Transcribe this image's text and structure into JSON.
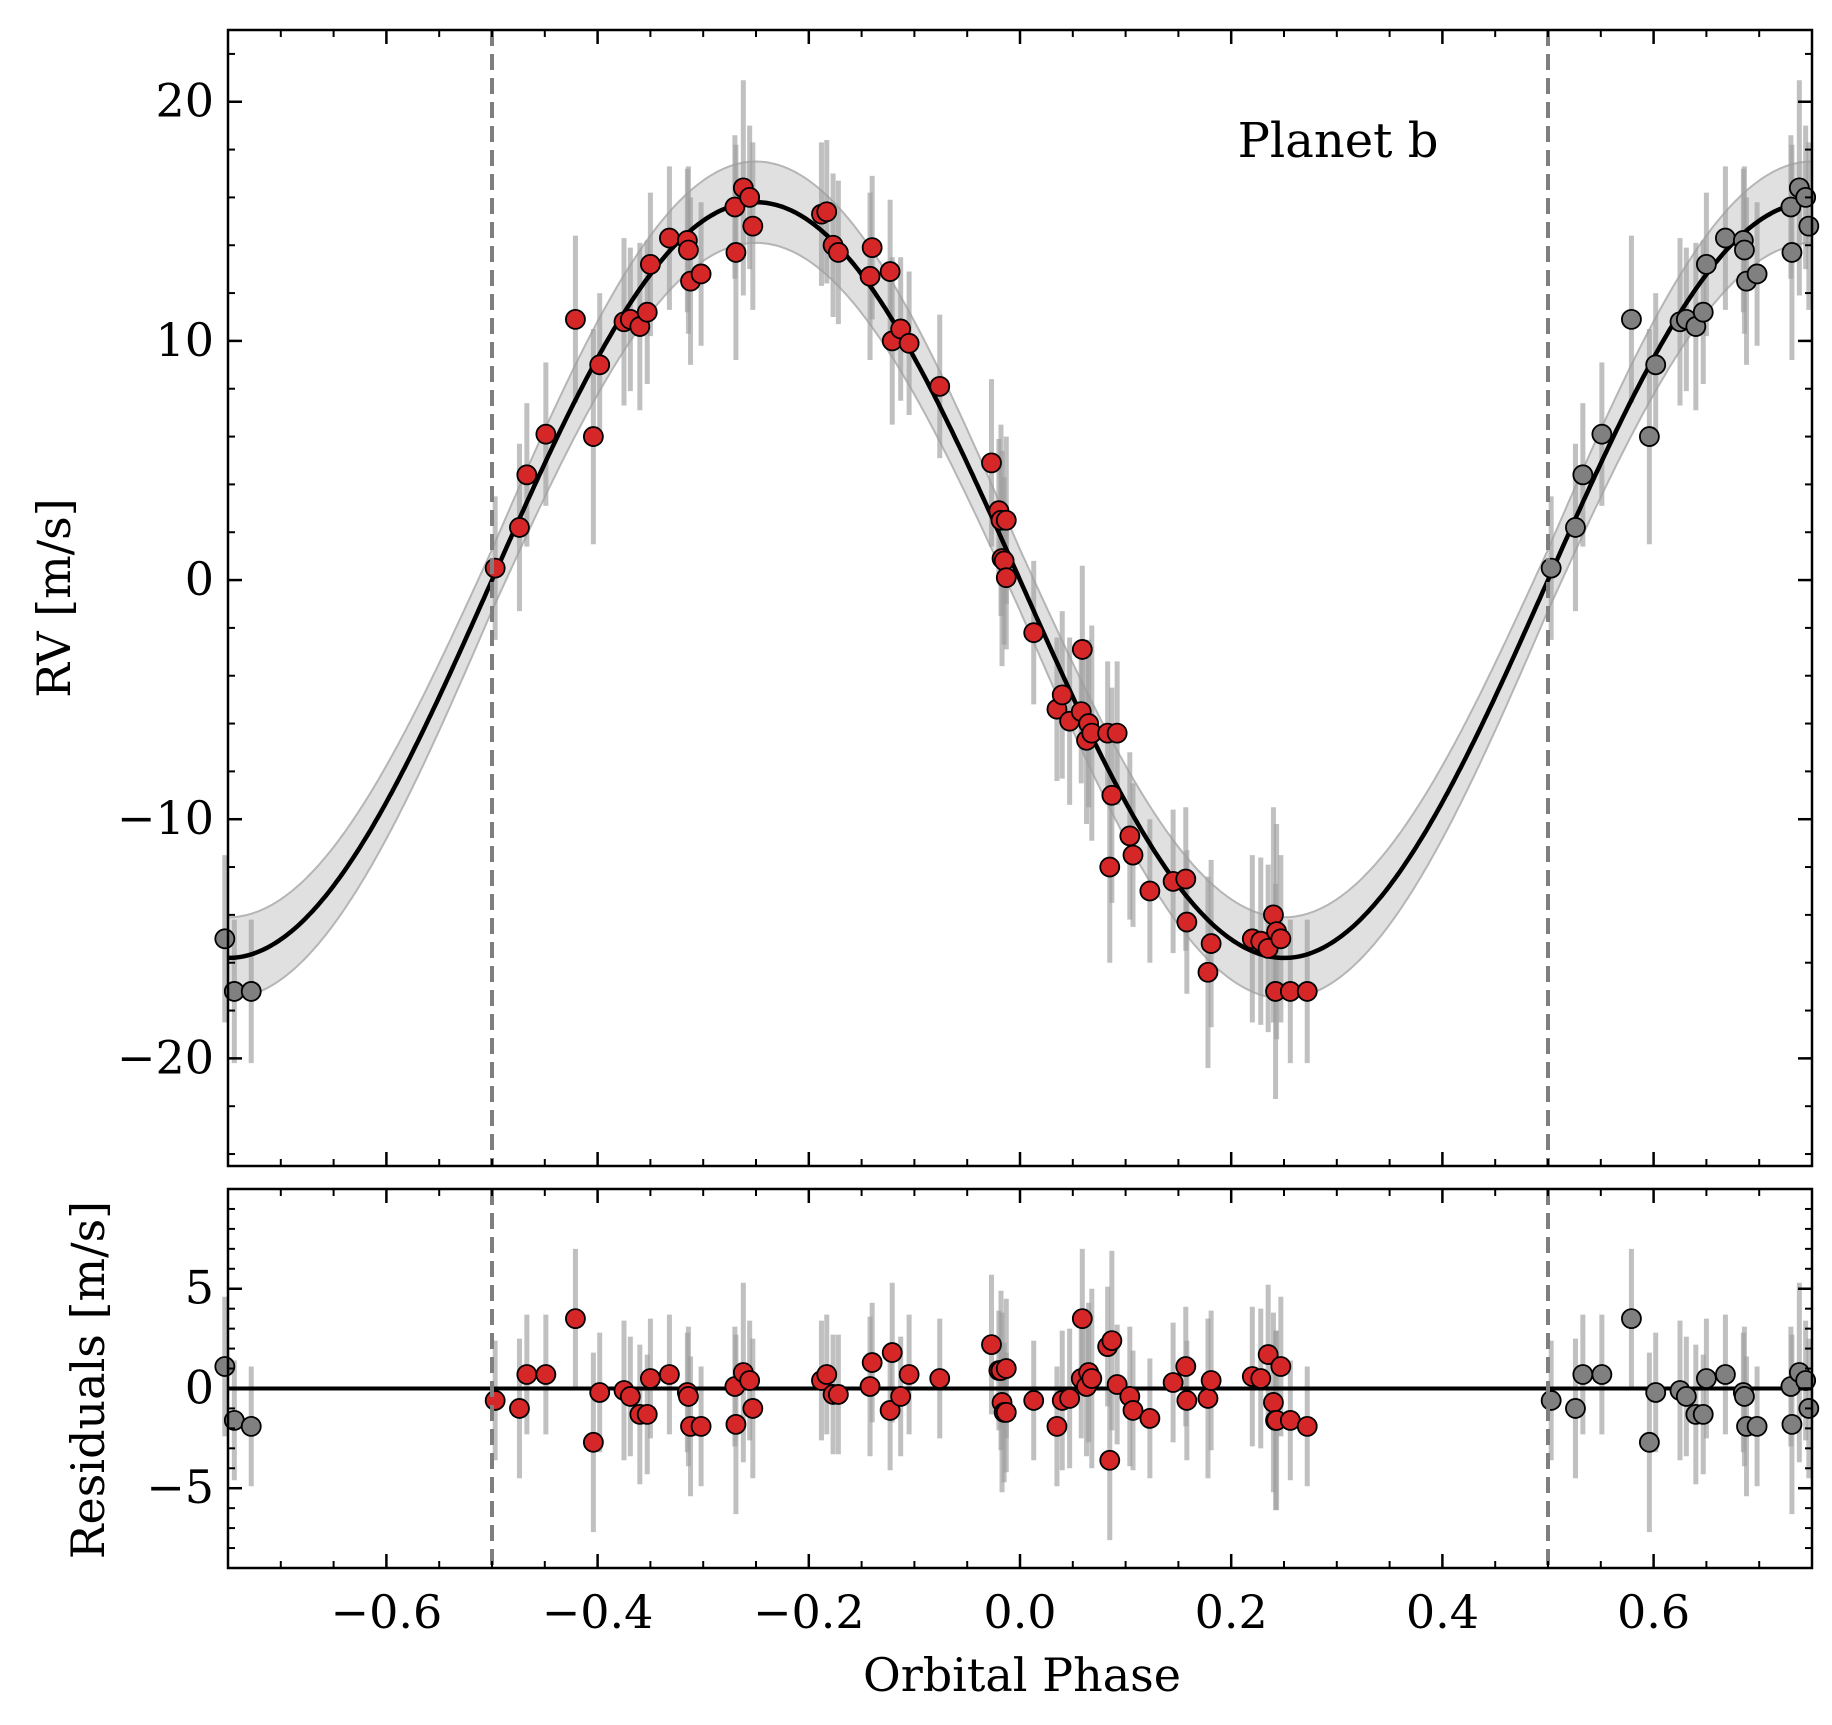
{
  "chart_data": {
    "type": "scatter",
    "xlabel": "Orbital Phase",
    "xlim": [
      -0.75,
      0.75
    ],
    "x_ticks": [
      -0.6,
      -0.4,
      -0.2,
      0.0,
      0.2,
      0.4,
      0.6
    ],
    "x_tick_labels": [
      "−0.6",
      "−0.4",
      "−0.2",
      "0.0",
      "0.2",
      "0.4",
      "0.6"
    ],
    "phase_boundaries": [
      -0.5,
      0.5
    ],
    "colors": {
      "primary_points": "#d62728",
      "wrapped_points": "#808080",
      "error_bars": "#9e9e9e",
      "model_band": "#d3d3d3",
      "model": "#000000",
      "boundary_lines": "#7f7f7f"
    },
    "rv_panel": {
      "ylabel": "RV [m/s]",
      "ylim": [
        -24.5,
        23
      ],
      "y_ticks": [
        -20,
        -10,
        0,
        10,
        20
      ],
      "y_tick_labels": [
        "−20",
        "−10",
        "0",
        "10",
        "20"
      ],
      "annotation": "Planet b",
      "model": {
        "semi_amplitude": 15.8,
        "phase_offset": 0.0,
        "band_halfwidth": 1.7
      }
    },
    "residual_panel": {
      "ylabel": "Residuals [m/s]",
      "ylim": [
        -9,
        10
      ],
      "y_ticks": [
        -5,
        0,
        5
      ],
      "y_tick_labels": [
        "−5",
        "0",
        "5"
      ],
      "zero_line": 0
    },
    "series": [
      {
        "phase": [
          -0.497,
          -0.474,
          -0.467,
          -0.449,
          -0.421,
          -0.404,
          -0.398,
          -0.375,
          -0.369,
          -0.36,
          -0.353,
          -0.35,
          -0.332,
          -0.315,
          -0.314,
          -0.312,
          -0.302,
          -0.27,
          -0.269,
          -0.262,
          -0.256,
          -0.253,
          -0.188,
          -0.183,
          -0.177,
          -0.172,
          -0.142,
          -0.14,
          -0.123,
          -0.121,
          -0.113,
          -0.105,
          -0.076,
          -0.027,
          -0.02,
          -0.018,
          -0.017,
          -0.015,
          -0.013,
          -0.013,
          0.013,
          0.035,
          0.04,
          0.047,
          0.058,
          0.059,
          0.063,
          0.065,
          0.068,
          0.083,
          0.085,
          0.087,
          0.092,
          0.104,
          0.107,
          0.123,
          0.145,
          0.157,
          0.158,
          0.178,
          0.181,
          0.22,
          0.228,
          0.235,
          0.24,
          0.242,
          0.243,
          0.247,
          0.256,
          0.272
        ],
        "rv": [
          0.5,
          2.2,
          4.4,
          6.1,
          10.9,
          6.0,
          9.0,
          10.8,
          10.9,
          10.6,
          11.2,
          13.2,
          14.3,
          14.2,
          13.8,
          12.5,
          12.8,
          15.6,
          13.7,
          16.4,
          16.0,
          14.8,
          15.3,
          15.4,
          14.0,
          13.7,
          12.7,
          13.9,
          12.9,
          10.0,
          10.5,
          9.9,
          8.1,
          4.9,
          2.9,
          2.5,
          0.9,
          0.8,
          2.5,
          0.1,
          -2.2,
          -5.4,
          -4.8,
          -5.9,
          -5.5,
          -2.9,
          -6.7,
          -6.0,
          -6.4,
          -6.4,
          -12.0,
          -9.0,
          -6.4,
          -10.7,
          -11.5,
          -13.0,
          -12.6,
          -12.5,
          -14.3,
          -16.4,
          -15.2,
          -15.0,
          -15.1,
          -15.4,
          -14.0,
          -17.2,
          -14.7,
          -15.0,
          -17.2,
          -17.2
        ],
        "residual": [
          -0.6,
          -1.0,
          0.7,
          0.7,
          3.5,
          -2.7,
          -0.2,
          -0.1,
          -0.4,
          -1.3,
          -1.3,
          0.5,
          0.7,
          -0.2,
          -0.4,
          -1.9,
          -1.9,
          0.1,
          -1.8,
          0.8,
          0.4,
          -1.0,
          0.4,
          0.7,
          -0.3,
          -0.3,
          0.1,
          1.3,
          -1.1,
          1.8,
          -0.4,
          0.7,
          0.5,
          2.2,
          0.9,
          0.9,
          -0.7,
          -1.2,
          1.0,
          -1.2,
          -0.6,
          -1.9,
          -0.6,
          -0.5,
          0.5,
          3.5,
          0.1,
          0.8,
          0.5,
          2.1,
          -3.6,
          2.4,
          0.2,
          -0.4,
          -1.1,
          -1.5,
          0.3,
          1.1,
          -0.6,
          -0.5,
          0.4,
          0.6,
          0.5,
          1.7,
          -0.7,
          -1.6,
          -1.6,
          1.1,
          -1.6,
          -1.9
        ],
        "error": [
          3.0,
          3.5,
          3.0,
          3.0,
          3.5,
          4.5,
          3.0,
          3.5,
          3.0,
          3.5,
          3.0,
          3.0,
          3.0,
          3.0,
          3.5,
          3.5,
          3.0,
          3.0,
          4.5,
          4.5,
          3.0,
          3.5,
          3.0,
          3.0,
          3.0,
          3.0,
          3.5,
          3.0,
          3.0,
          3.5,
          3.0,
          3.0,
          3.0,
          3.5,
          3.0,
          4.0,
          4.5,
          3.5,
          3.5,
          3.0,
          3.0,
          3.0,
          3.5,
          3.5,
          3.0,
          3.5,
          3.5,
          3.5,
          4.5,
          3.0,
          4.0,
          4.5,
          3.0,
          3.5,
          3.0,
          3.0,
          3.0,
          3.0,
          3.0,
          4.0,
          3.5,
          3.5,
          3.5,
          3.5,
          4.5,
          4.5,
          4.5,
          3.5,
          3.0,
          3.0
        ]
      }
    ]
  }
}
